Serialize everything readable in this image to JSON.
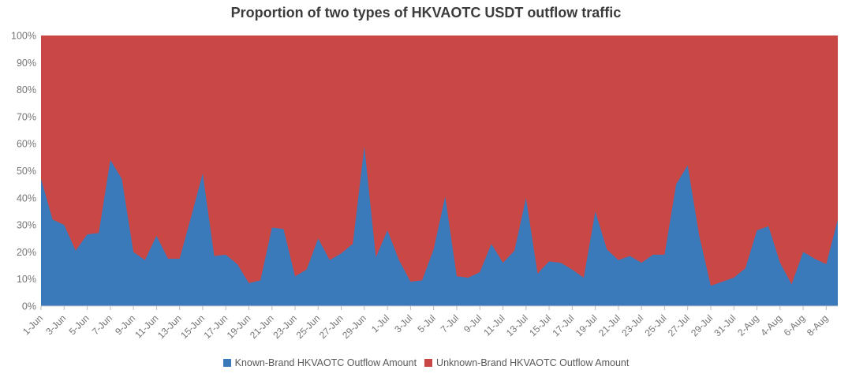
{
  "title": "Proportion of two types of HKVAOTC USDT outflow traffic",
  "legend": [
    {
      "label": "Known-Brand HKVAOTC Outflow Amount",
      "color": "#3A79BA"
    },
    {
      "label": "Unknown-Brand HKVAOTC Outflow Amount",
      "color": "#C94744"
    }
  ],
  "chart_data": {
    "type": "area",
    "stacked_percent": true,
    "title": "Proportion of two types of HKVAOTC USDT outflow traffic",
    "xlabel": "",
    "ylabel": "",
    "ylim": [
      0,
      100
    ],
    "y_ticks": [
      "0%",
      "10%",
      "20%",
      "30%",
      "40%",
      "50%",
      "60%",
      "70%",
      "80%",
      "90%",
      "100%"
    ],
    "x_tick_every": 2,
    "grid": false,
    "legend_position": "bottom",
    "x": [
      "1-Jun",
      "2-Jun",
      "3-Jun",
      "4-Jun",
      "5-Jun",
      "6-Jun",
      "7-Jun",
      "8-Jun",
      "9-Jun",
      "10-Jun",
      "11-Jun",
      "12-Jun",
      "13-Jun",
      "14-Jun",
      "15-Jun",
      "16-Jun",
      "17-Jun",
      "18-Jun",
      "19-Jun",
      "20-Jun",
      "21-Jun",
      "22-Jun",
      "23-Jun",
      "24-Jun",
      "25-Jun",
      "26-Jun",
      "27-Jun",
      "28-Jun",
      "29-Jun",
      "30-Jun",
      "1-Jul",
      "2-Jul",
      "3-Jul",
      "4-Jul",
      "5-Jul",
      "6-Jul",
      "7-Jul",
      "8-Jul",
      "9-Jul",
      "10-Jul",
      "11-Jul",
      "12-Jul",
      "13-Jul",
      "14-Jul",
      "15-Jul",
      "16-Jul",
      "17-Jul",
      "18-Jul",
      "19-Jul",
      "20-Jul",
      "21-Jul",
      "22-Jul",
      "23-Jul",
      "24-Jul",
      "25-Jul",
      "26-Jul",
      "27-Jul",
      "28-Jul",
      "29-Jul",
      "30-Jul",
      "31-Jul",
      "1-Aug",
      "2-Aug",
      "3-Aug",
      "4-Aug",
      "5-Aug",
      "6-Aug",
      "7-Aug",
      "8-Aug",
      "9-Aug"
    ],
    "series": [
      {
        "name": "Known-Brand HKVAOTC Outflow Amount",
        "color": "#3A79BA",
        "values": [
          47,
          32,
          30,
          20.5,
          26.5,
          27,
          54,
          47,
          20,
          17,
          26,
          17.5,
          17.5,
          33,
          49,
          18.5,
          19,
          15.5,
          8.5,
          9.5,
          29,
          28.5,
          11,
          13.5,
          25,
          17,
          19.5,
          23,
          59,
          18,
          28,
          17,
          9,
          9.5,
          21,
          40.5,
          11,
          10.5,
          12.5,
          23,
          16,
          20.5,
          40,
          12,
          16.5,
          16,
          13.5,
          10.5,
          35,
          21,
          17,
          18.5,
          16,
          19,
          19,
          45,
          52,
          26,
          7.5,
          9,
          10.5,
          14,
          28,
          29.5,
          16,
          8,
          20,
          17.5,
          15.5,
          32
        ]
      },
      {
        "name": "Unknown-Brand HKVAOTC Outflow Amount",
        "color": "#C94744",
        "values": [
          53,
          68,
          70,
          79.5,
          73.5,
          73,
          46,
          53,
          80,
          83,
          74,
          82.5,
          82.5,
          67,
          51,
          81.5,
          81,
          84.5,
          91.5,
          90.5,
          71,
          71.5,
          89,
          86.5,
          75,
          83,
          80.5,
          77,
          41,
          82,
          72,
          83,
          91,
          90.5,
          79,
          59.5,
          89,
          89.5,
          87.5,
          77,
          84,
          79.5,
          60,
          88,
          83.5,
          84,
          86.5,
          89.5,
          65,
          79,
          83,
          81.5,
          84,
          81,
          81,
          55,
          48,
          74,
          92.5,
          91,
          89.5,
          86,
          72,
          70.5,
          84,
          92,
          80,
          82.5,
          84.5,
          68
        ]
      }
    ]
  }
}
